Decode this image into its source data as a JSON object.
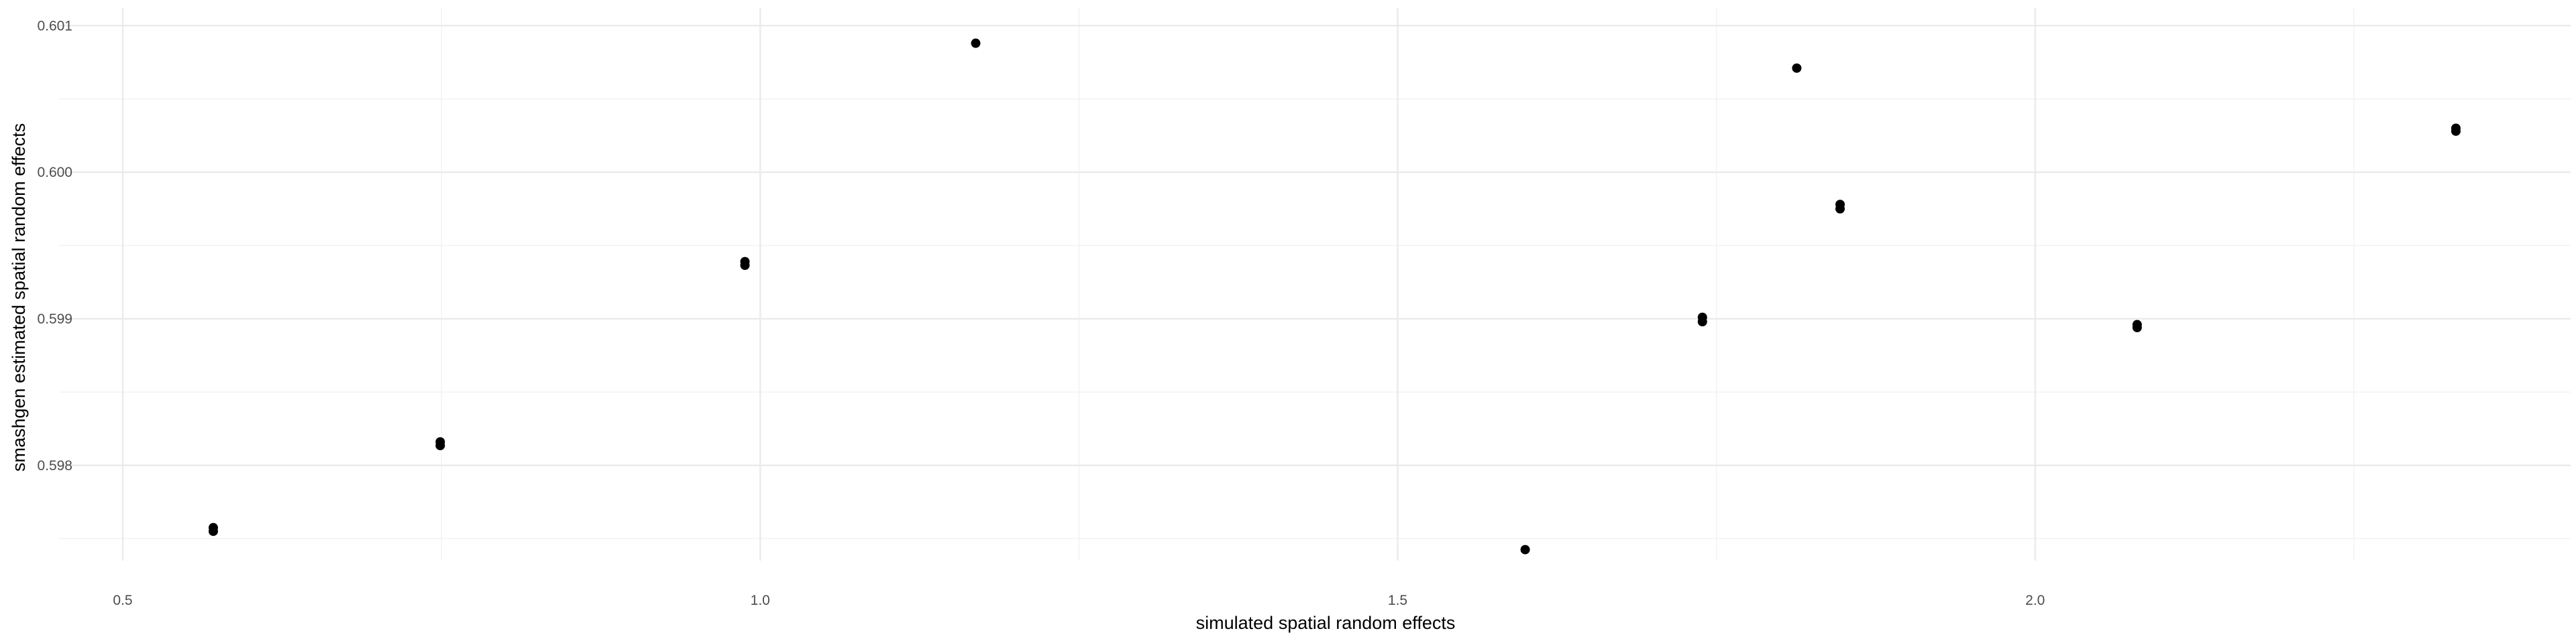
{
  "chart_data": {
    "type": "scatter",
    "xlabel": "simulated spatial random effects",
    "ylabel": "smashgen estimated spatial random effects",
    "xlim": [
      0.45,
      2.42
    ],
    "ylim": [
      0.59735,
      0.60112
    ],
    "x_ticks": [
      {
        "value": 0.5,
        "label": "0.5"
      },
      {
        "value": 1.0,
        "label": "1.0"
      },
      {
        "value": 1.5,
        "label": "1.5"
      },
      {
        "value": 2.0,
        "label": "2.0"
      }
    ],
    "y_ticks": [
      {
        "value": 0.598,
        "label": "0.598"
      },
      {
        "value": 0.599,
        "label": "0.599"
      },
      {
        "value": 0.6,
        "label": "0.600"
      },
      {
        "value": 0.601,
        "label": "0.601"
      }
    ],
    "x_minor": [
      0.75,
      1.25,
      1.75,
      2.25
    ],
    "y_minor": [
      0.5975,
      0.5985,
      0.5995,
      0.6005
    ],
    "grid": true,
    "point_color": "#000000",
    "points": [
      {
        "x": 0.571,
        "y": 0.597575
      },
      {
        "x": 0.571,
        "y": 0.59755
      },
      {
        "x": 0.749,
        "y": 0.59816
      },
      {
        "x": 0.749,
        "y": 0.598135
      },
      {
        "x": 0.988,
        "y": 0.59939
      },
      {
        "x": 0.988,
        "y": 0.599365
      },
      {
        "x": 1.169,
        "y": 0.60088
      },
      {
        "x": 1.6,
        "y": 0.597425
      },
      {
        "x": 1.739,
        "y": 0.59901
      },
      {
        "x": 1.739,
        "y": 0.59898
      },
      {
        "x": 1.813,
        "y": 0.60071
      },
      {
        "x": 1.847,
        "y": 0.59978
      },
      {
        "x": 1.847,
        "y": 0.59975
      },
      {
        "x": 2.08,
        "y": 0.59896
      },
      {
        "x": 2.08,
        "y": 0.59894
      },
      {
        "x": 2.33,
        "y": 0.6003
      },
      {
        "x": 2.33,
        "y": 0.60028
      }
    ]
  }
}
